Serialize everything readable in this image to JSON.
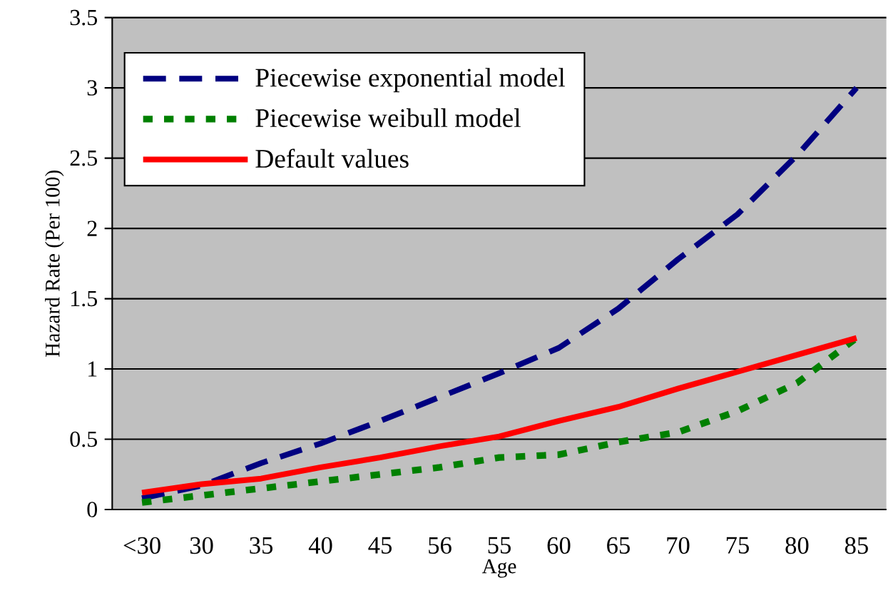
{
  "chart_data": {
    "type": "line",
    "xlabel": "Age",
    "ylabel": "Hazard Rate (Per 100)",
    "categories": [
      "<30",
      "30",
      "35",
      "40",
      "45",
      "56",
      "55",
      "60",
      "65",
      "70",
      "75",
      "80",
      "85"
    ],
    "ylim": [
      0,
      3.5
    ],
    "yticks": [
      0,
      0.5,
      1,
      1.5,
      2,
      2.5,
      3,
      3.5
    ],
    "grid": "y",
    "legend": "top left",
    "series": [
      {
        "name": "Piecewise exponential model",
        "color": "#000080",
        "line_style": "dashed",
        "values": [
          0.08,
          0.17,
          0.33,
          0.47,
          0.63,
          0.8,
          0.97,
          1.15,
          1.43,
          1.78,
          2.1,
          2.52,
          3.0
        ]
      },
      {
        "name": "Piecewise weibull model",
        "color": "#008000",
        "line_style": "dotted",
        "values": [
          0.05,
          0.1,
          0.15,
          0.2,
          0.25,
          0.3,
          0.37,
          0.39,
          0.48,
          0.55,
          0.7,
          0.9,
          1.22
        ]
      },
      {
        "name": "Default values",
        "color": "#ff0000",
        "line_style": "solid",
        "values": [
          0.12,
          0.18,
          0.22,
          0.3,
          0.37,
          0.45,
          0.52,
          0.63,
          0.73,
          0.86,
          0.98,
          1.1,
          1.22
        ]
      }
    ]
  }
}
